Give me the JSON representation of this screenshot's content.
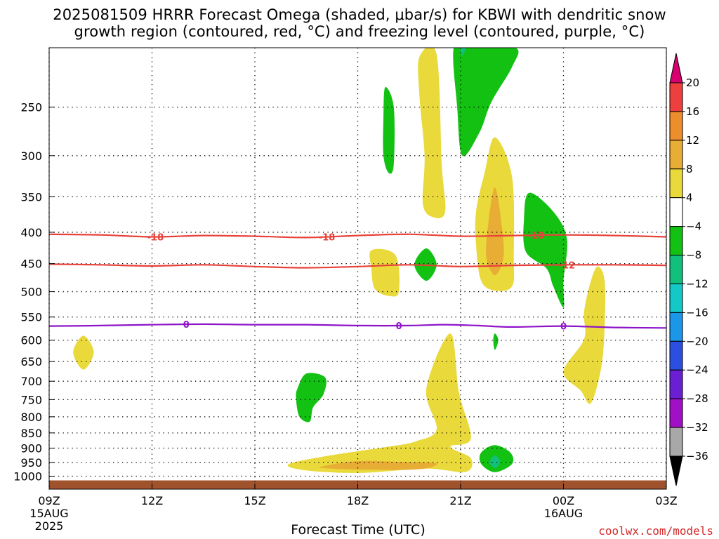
{
  "chart_data": {
    "type": "contour",
    "title": "2025081509 HRRR Forecast Omega (shaded, μbar/s) for KBWI with dendritic snow",
    "subtitle": "growth region (contoured, red, °C) and freezing level (contoured, purple, °C)",
    "xlabel": "Forecast Time (UTC)",
    "credit": "coolwx.com/models",
    "x_ticks": [
      {
        "hour": 0,
        "label": "09Z",
        "sublabel": "15AUG",
        "sublabel2": "2025"
      },
      {
        "hour": 3,
        "label": "12Z"
      },
      {
        "hour": 6,
        "label": "15Z"
      },
      {
        "hour": 9,
        "label": "18Z"
      },
      {
        "hour": 12,
        "label": "21Z"
      },
      {
        "hour": 15,
        "label": "00Z",
        "sublabel": "16AUG"
      },
      {
        "hour": 18,
        "label": "03Z"
      }
    ],
    "xlim": [
      0,
      18
    ],
    "ylabel": "",
    "y_scale": "log",
    "ylim": [
      1050,
      200
    ],
    "y_ticks": [
      250,
      300,
      350,
      400,
      450,
      500,
      550,
      600,
      650,
      700,
      750,
      800,
      850,
      900,
      950,
      1000
    ],
    "grid": true,
    "colorbar": {
      "levels": [
        "20",
        "16",
        "12",
        "8",
        "4",
        "−4",
        "−8",
        "−12",
        "−16",
        "−20",
        "−24",
        "−28",
        "−32",
        "−36"
      ],
      "colors": [
        "#d6006f",
        "#ee3f3f",
        "#ec8e2b",
        "#e8ad35",
        "#e9d93b",
        "#ffffff",
        "#13c113",
        "#12bf7c",
        "#14c8c8",
        "#1c96e8",
        "#2b4fe0",
        "#6a1fd3",
        "#a010c6",
        "#a8a8a8",
        "#000000"
      ]
    },
    "dendritic_contours": [
      {
        "label": "-18",
        "points": [
          [
            0,
            403
          ],
          [
            1.5,
            404
          ],
          [
            3,
            407
          ],
          [
            4.5,
            405
          ],
          [
            6,
            406
          ],
          [
            7.5,
            408
          ],
          [
            9,
            405
          ],
          [
            10.5,
            403
          ],
          [
            12,
            406
          ],
          [
            13.5,
            405
          ],
          [
            15,
            404
          ],
          [
            16.5,
            405
          ],
          [
            18,
            407
          ]
        ],
        "label_hours": [
          3.1,
          8.1,
          14.2
        ]
      },
      {
        "label": "-12",
        "points": [
          [
            0,
            451
          ],
          [
            1.5,
            452
          ],
          [
            3,
            454
          ],
          [
            4.5,
            452
          ],
          [
            6,
            455
          ],
          [
            7.5,
            457
          ],
          [
            9,
            455
          ],
          [
            10.5,
            452
          ],
          [
            12,
            455
          ],
          [
            13.5,
            453
          ],
          [
            15,
            452
          ],
          [
            16.5,
            452
          ],
          [
            18,
            453
          ]
        ],
        "label_hours": [
          15.1
        ]
      }
    ],
    "freezing_contour": {
      "label": "0",
      "points": [
        [
          0,
          569
        ],
        [
          1.5,
          568
        ],
        [
          3,
          566
        ],
        [
          4.5,
          565
        ],
        [
          6,
          566
        ],
        [
          7.5,
          566
        ],
        [
          9,
          568
        ],
        [
          10.5,
          568
        ],
        [
          11.5,
          566
        ],
        [
          12.5,
          568
        ],
        [
          13.5,
          571
        ],
        [
          15,
          569
        ],
        [
          16.5,
          572
        ],
        [
          18,
          573
        ]
      ],
      "label_hours": [
        4,
        10.2,
        15
      ]
    },
    "shaded_regions": [
      {
        "range": "4 to 8",
        "color": "#e9d93b",
        "points": [
          [
            1.0,
            590
          ],
          [
            1.3,
            628
          ],
          [
            1.0,
            670
          ],
          [
            0.7,
            628
          ]
        ]
      },
      {
        "range": "4 to 8",
        "color": "#e9d93b",
        "points": [
          [
            11.0,
            720
          ],
          [
            11.7,
            585
          ],
          [
            11.95,
            730
          ],
          [
            12.3,
            868
          ],
          [
            11.7,
            895
          ],
          [
            12.3,
            935
          ],
          [
            12.15,
            984
          ],
          [
            11.0,
            972
          ],
          [
            9.0,
            988
          ],
          [
            7.4,
            977
          ],
          [
            7.0,
            955
          ],
          [
            8.2,
            925
          ],
          [
            9.9,
            895
          ],
          [
            10.7,
            877
          ],
          [
            11.3,
            838
          ]
        ]
      },
      {
        "range": "8 to 12",
        "color": "#e8ad35",
        "points": [
          [
            8.0,
            963
          ],
          [
            9.0,
            945
          ],
          [
            10.3,
            948
          ],
          [
            11.3,
            953
          ],
          [
            10.8,
            974
          ],
          [
            9.2,
            976
          ],
          [
            8.0,
            970
          ]
        ]
      },
      {
        "range": "4 to 8",
        "color": "#e9d93b",
        "points": [
          [
            9.4,
            428
          ],
          [
            10.1,
            436
          ],
          [
            10.2,
            500
          ],
          [
            9.9,
            508
          ],
          [
            9.5,
            495
          ],
          [
            9.4,
            460
          ]
        ]
      },
      {
        "range": "4 to 8",
        "color": "#e9d93b",
        "points": [
          [
            10.8,
            207
          ],
          [
            11.3,
            205
          ],
          [
            11.45,
            310
          ],
          [
            11.55,
            370
          ],
          [
            11.2,
            378
          ],
          [
            10.9,
            360
          ],
          [
            10.95,
            300
          ],
          [
            10.8,
            240
          ]
        ]
      },
      {
        "range": "4 to 8",
        "color": "#e9d93b",
        "points": [
          [
            13.0,
            280
          ],
          [
            13.5,
            325
          ],
          [
            13.55,
            440
          ],
          [
            13.5,
            490
          ],
          [
            13.0,
            498
          ],
          [
            12.6,
            480
          ],
          [
            12.45,
            420
          ],
          [
            12.45,
            370
          ],
          [
            12.7,
            320
          ]
        ]
      },
      {
        "range": "8 to 12",
        "color": "#e8ad35",
        "points": [
          [
            13.0,
            338
          ],
          [
            13.2,
            390
          ],
          [
            13.25,
            440
          ],
          [
            13.0,
            470
          ],
          [
            12.75,
            440
          ],
          [
            12.8,
            390
          ]
        ]
      },
      {
        "range": "4 to 8",
        "color": "#e9d93b",
        "points": [
          [
            15.0,
            675
          ],
          [
            15.6,
            598
          ],
          [
            15.6,
            540
          ],
          [
            15.8,
            480
          ],
          [
            16.0,
            455
          ],
          [
            16.2,
            480
          ],
          [
            16.2,
            570
          ],
          [
            16.1,
            665
          ],
          [
            15.8,
            760
          ],
          [
            15.5,
            725
          ]
        ]
      },
      {
        "range": "-8 to -4",
        "color": "#13c113",
        "points": [
          [
            12.3,
            200
          ],
          [
            13.6,
            200
          ],
          [
            13.5,
            215
          ],
          [
            12.9,
            245
          ],
          [
            12.55,
            275
          ],
          [
            12.05,
            300
          ],
          [
            11.9,
            250
          ],
          [
            11.8,
            200
          ]
        ]
      },
      {
        "range": "-8 to -4",
        "color": "#13c113",
        "points": [
          [
            9.8,
            232
          ],
          [
            10.05,
            250
          ],
          [
            10.05,
            310
          ],
          [
            9.9,
            320
          ],
          [
            9.75,
            300
          ],
          [
            9.75,
            260
          ]
        ]
      },
      {
        "range": "-8 to -4",
        "color": "#13c113",
        "points": [
          [
            14.0,
            345
          ],
          [
            14.7,
            370
          ],
          [
            15.1,
            410
          ],
          [
            15.0,
            480
          ],
          [
            15.0,
            530
          ],
          [
            14.7,
            490
          ],
          [
            14.5,
            458
          ],
          [
            13.9,
            430
          ],
          [
            13.85,
            380
          ]
        ]
      },
      {
        "range": "-8 to -4",
        "color": "#13c113",
        "points": [
          [
            11.0,
            425
          ],
          [
            11.3,
            452
          ],
          [
            11.0,
            480
          ],
          [
            10.65,
            452
          ]
        ]
      },
      {
        "range": "-8 to -4",
        "color": "#13c113",
        "points": [
          [
            7.5,
            680
          ],
          [
            8.05,
            690
          ],
          [
            8.0,
            735
          ],
          [
            7.7,
            772
          ],
          [
            7.6,
            815
          ],
          [
            7.3,
            800
          ],
          [
            7.2,
            745
          ],
          [
            7.25,
            718
          ]
        ]
      },
      {
        "range": "-8 to -4",
        "color": "#13c113",
        "points": [
          [
            13.0,
            585
          ],
          [
            13.1,
            600
          ],
          [
            13.0,
            622
          ],
          [
            12.95,
            600
          ]
        ]
      },
      {
        "range": "-8 to -4",
        "color": "#13c113",
        "points": [
          [
            13.0,
            890
          ],
          [
            13.45,
            915
          ],
          [
            13.5,
            955
          ],
          [
            13.0,
            985
          ],
          [
            12.6,
            955
          ],
          [
            12.6,
            915
          ]
        ]
      },
      {
        "range": "-12 to -8",
        "color": "#12bf7c",
        "points": [
          [
            13.0,
            925
          ],
          [
            13.15,
            948
          ],
          [
            13.0,
            970
          ],
          [
            12.85,
            948
          ]
        ]
      },
      {
        "range": "-12 to -8",
        "color": "#12bf7c",
        "points": [
          [
            12.0,
            200
          ],
          [
            12.15,
            200
          ],
          [
            12.05,
            206
          ]
        ]
      }
    ],
    "ground_band": {
      "from_pressure": 1016,
      "to_pressure": 1050,
      "color": "#a0522d"
    }
  }
}
